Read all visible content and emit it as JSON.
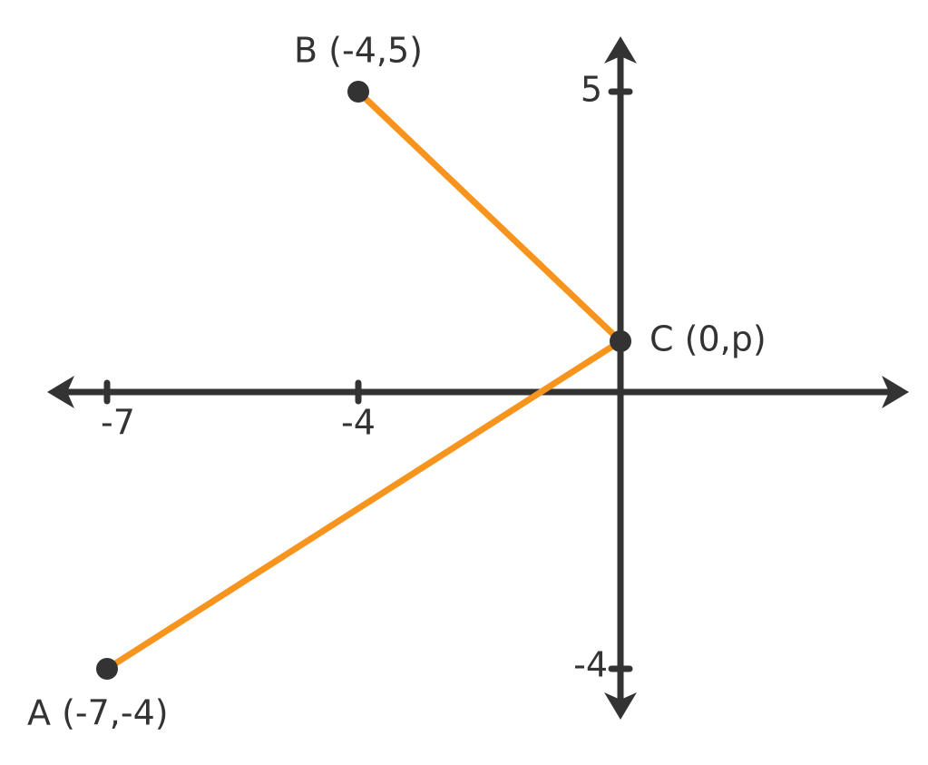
{
  "points": [
    {
      "label": "A (-7,-4)"
    },
    {
      "label": "B (-4,5)"
    },
    {
      "label": "C (0,p)"
    }
  ],
  "x_axis": {
    "tick_labels": [
      "-7",
      "-4"
    ]
  },
  "y_axis": {
    "tick_labels": [
      "5",
      "-4"
    ]
  }
}
